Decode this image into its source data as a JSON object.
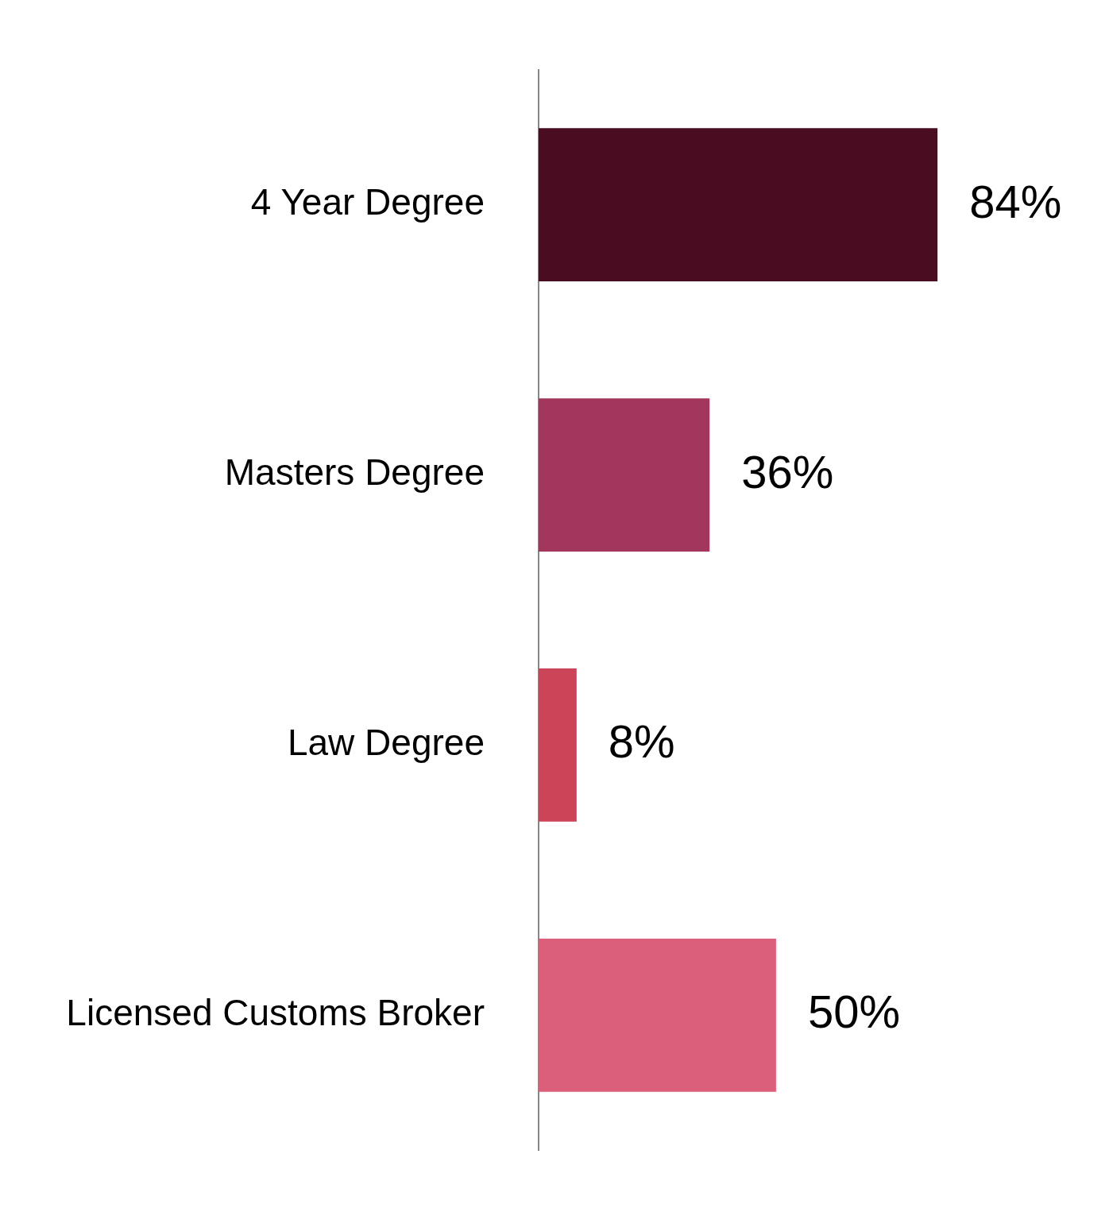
{
  "chart_data": {
    "type": "bar",
    "orientation": "horizontal",
    "categories": [
      "4 Year Degree",
      "Masters Degree",
      "Law Degree",
      "Licensed Customs Broker"
    ],
    "values": [
      84,
      36,
      8,
      50
    ],
    "colors": [
      "#4a0c20",
      "#a3365c",
      "#cc4458",
      "#db5f7a"
    ],
    "value_labels": [
      "84%",
      "36%",
      "8%",
      "50%"
    ],
    "tick_labels": "y",
    "legend": false
  }
}
